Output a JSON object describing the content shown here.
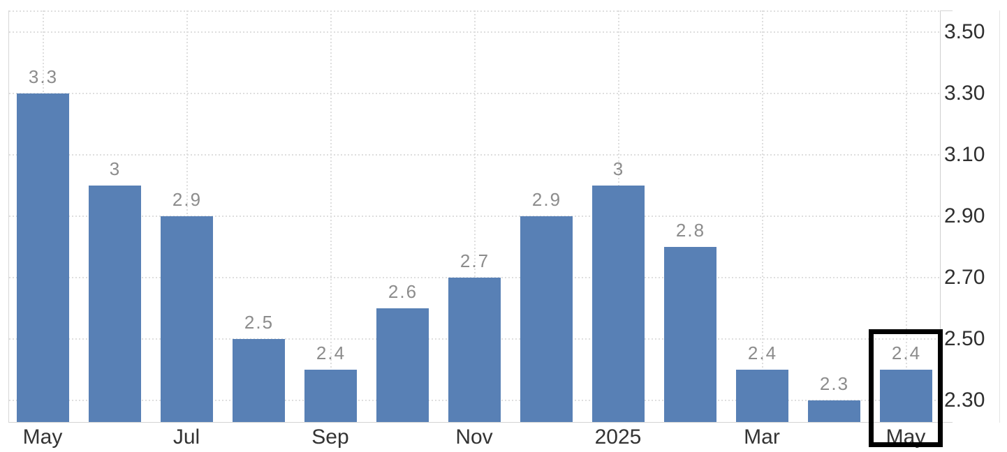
{
  "chart_data": {
    "type": "bar",
    "title": "",
    "xlabel": "",
    "ylabel": "",
    "bars": [
      {
        "label": "3.3",
        "value": 3.3
      },
      {
        "label": "3",
        "value": 3.0
      },
      {
        "label": "2.9",
        "value": 2.9
      },
      {
        "label": "2.5",
        "value": 2.5
      },
      {
        "label": "2.4",
        "value": 2.4
      },
      {
        "label": "2.6",
        "value": 2.6
      },
      {
        "label": "2.7",
        "value": 2.7
      },
      {
        "label": "2.9",
        "value": 2.9
      },
      {
        "label": "3",
        "value": 3.0
      },
      {
        "label": "2.8",
        "value": 2.8
      },
      {
        "label": "2.4",
        "value": 2.4
      },
      {
        "label": "2.3",
        "value": 2.3
      },
      {
        "label": "2.4",
        "value": 2.4
      }
    ],
    "x_ticks": [
      {
        "bar_index": 0,
        "label": "May"
      },
      {
        "bar_index": 2,
        "label": "Jul"
      },
      {
        "bar_index": 4,
        "label": "Sep"
      },
      {
        "bar_index": 6,
        "label": "Nov"
      },
      {
        "bar_index": 8,
        "label": "2025"
      },
      {
        "bar_index": 10,
        "label": "Mar"
      },
      {
        "bar_index": 12,
        "label": "May"
      }
    ],
    "y_ticks": [
      {
        "value": 3.5,
        "label": "3.50"
      },
      {
        "value": 3.3,
        "label": "3.30"
      },
      {
        "value": 3.1,
        "label": "3.10"
      },
      {
        "value": 2.9,
        "label": "2.90"
      },
      {
        "value": 2.7,
        "label": "2.70"
      },
      {
        "value": 2.5,
        "label": "2.50"
      },
      {
        "value": 2.3,
        "label": "2.30"
      }
    ],
    "ylim": [
      2.23,
      3.57
    ],
    "grid": "dotted",
    "legend": "none",
    "y_axis_position": "right",
    "bar_color": "#5880b5",
    "data_label_color": "#8c8c8c",
    "axis_text_color": "#2f2f2f",
    "highlight": {
      "bar_index": 12,
      "box_color": "#000000"
    }
  }
}
